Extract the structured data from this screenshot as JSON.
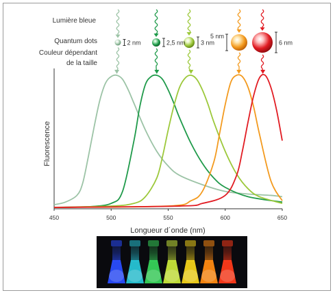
{
  "labels": {
    "blue_light": "Lumière bleue",
    "quantum_dots": "Quantum dots",
    "size_color_line1": "Couleur dépendant",
    "size_color_line2": "de la taille"
  },
  "dots": [
    {
      "size_label": "2 nm",
      "color": "#9cc3a6",
      "highlight": "#e8f4ea",
      "shade": "#5c8a6a"
    },
    {
      "size_label": "2,5 nm",
      "color": "#1f9a4a",
      "highlight": "#a8e6b8",
      "shade": "#0b5a26"
    },
    {
      "size_label": "3 nm",
      "color": "#9cc83a",
      "highlight": "#eaf7c8",
      "shade": "#5a7d12"
    },
    {
      "size_label": "5 nm",
      "color": "#f39a1e",
      "highlight": "#ffe7b0",
      "shade": "#b85a05"
    },
    {
      "size_label": "6 nm",
      "color": "#e11b22",
      "highlight": "#ffc2c2",
      "shade": "#8a0a0e"
    }
  ],
  "chart_data": {
    "type": "line",
    "xlabel": "Longueur d´onde (nm)",
    "ylabel": "Fluorescence",
    "xlim": [
      450,
      650
    ],
    "xticks": [
      450,
      500,
      550,
      600,
      650
    ],
    "series": [
      {
        "color": "#9cc3a6",
        "x": [
          450,
          460,
          470,
          475,
          480,
          485,
          490,
          495,
          500,
          505,
          510,
          515,
          520,
          530,
          540,
          550,
          560,
          580,
          600,
          620,
          640,
          650
        ],
        "y": [
          0.02,
          0.04,
          0.09,
          0.18,
          0.38,
          0.6,
          0.8,
          0.93,
          0.98,
          0.99,
          0.96,
          0.88,
          0.78,
          0.58,
          0.42,
          0.31,
          0.24,
          0.17,
          0.12,
          0.1,
          0.09,
          0.08
        ]
      },
      {
        "color": "#1f9a4a",
        "x": [
          450,
          480,
          500,
          510,
          520,
          525,
          530,
          535,
          540,
          545,
          550,
          555,
          560,
          570,
          580,
          590,
          600,
          620,
          650
        ],
        "y": [
          0.0,
          0.005,
          0.03,
          0.12,
          0.5,
          0.75,
          0.92,
          0.98,
          0.99,
          0.96,
          0.88,
          0.78,
          0.67,
          0.48,
          0.33,
          0.22,
          0.15,
          0.08,
          0.04
        ]
      },
      {
        "color": "#9cc83a",
        "x": [
          450,
          500,
          520,
          530,
          540,
          545,
          550,
          555,
          560,
          565,
          570,
          575,
          580,
          585,
          590,
          600,
          610,
          620,
          630,
          650
        ],
        "y": [
          0.0,
          0.01,
          0.03,
          0.08,
          0.22,
          0.38,
          0.58,
          0.76,
          0.9,
          0.97,
          0.99,
          0.96,
          0.88,
          0.77,
          0.64,
          0.42,
          0.25,
          0.14,
          0.08,
          0.03
        ]
      },
      {
        "color": "#f39a1e",
        "x": [
          450,
          550,
          570,
          580,
          590,
          595,
          600,
          605,
          610,
          615,
          620,
          625,
          630,
          640,
          650
        ],
        "y": [
          0.0,
          0.01,
          0.05,
          0.12,
          0.34,
          0.55,
          0.77,
          0.94,
          0.99,
          0.98,
          0.9,
          0.75,
          0.55,
          0.2,
          0.05
        ]
      },
      {
        "color": "#e11b22",
        "x": [
          450,
          560,
          580,
          600,
          610,
          615,
          620,
          625,
          630,
          635,
          640,
          645,
          650
        ],
        "y": [
          0.0,
          0.01,
          0.03,
          0.09,
          0.24,
          0.42,
          0.64,
          0.84,
          0.97,
          0.99,
          0.9,
          0.73,
          0.5
        ]
      }
    ]
  },
  "vials": [
    {
      "color": "#2a4dff"
    },
    {
      "color": "#27c4d6"
    },
    {
      "color": "#37d25a"
    },
    {
      "color": "#c8e63a"
    },
    {
      "color": "#f3d21a"
    },
    {
      "color": "#ff8a12"
    },
    {
      "color": "#ff3a1a"
    }
  ]
}
